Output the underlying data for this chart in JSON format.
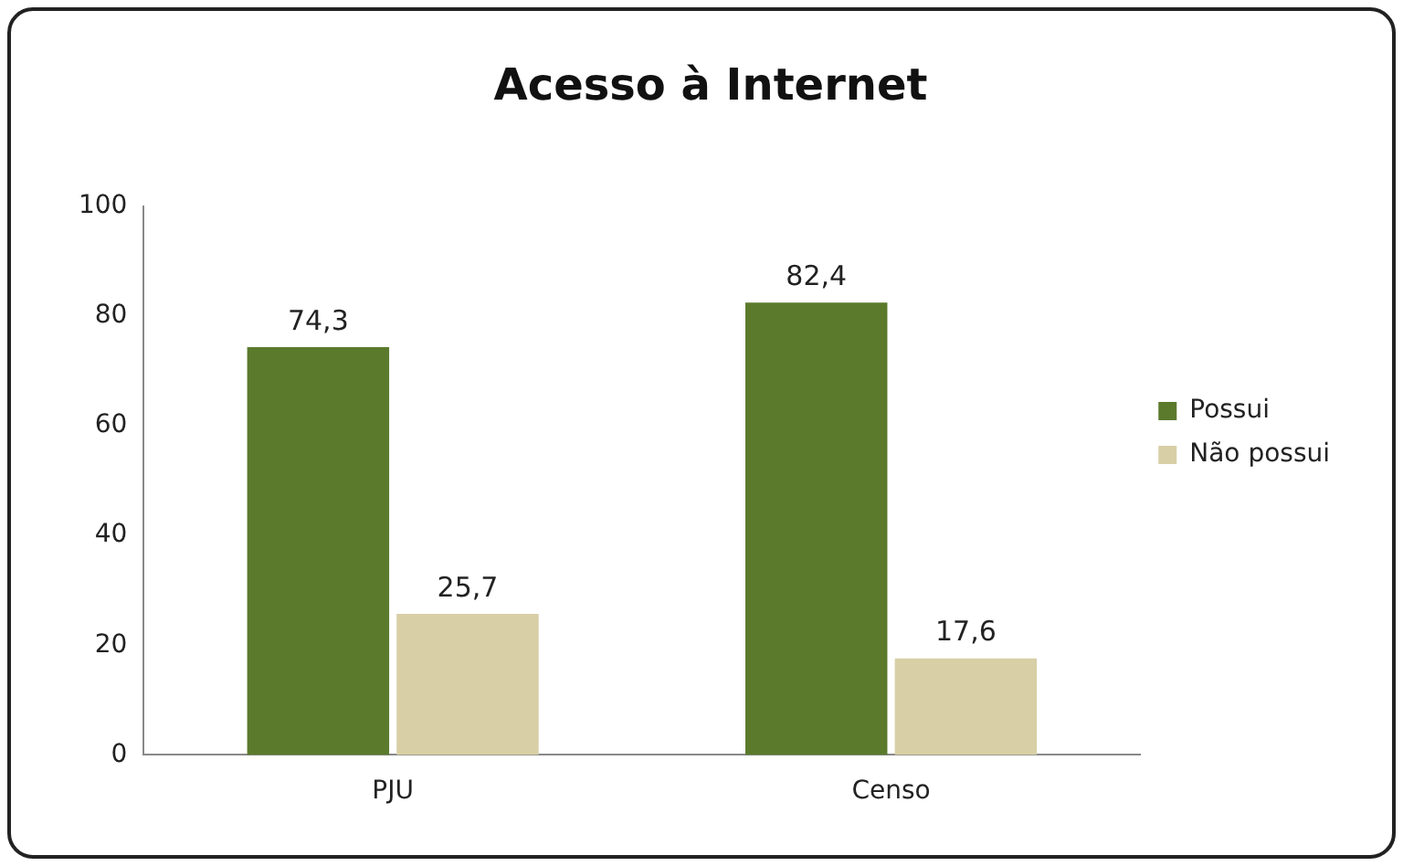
{
  "chart_data": {
    "type": "bar",
    "title": "Acesso à Internet",
    "categories": [
      "PJU",
      "Censo"
    ],
    "series": [
      {
        "name": "Possui",
        "color": "#5b7a2c",
        "values": [
          74.3,
          82.4
        ],
        "value_labels": [
          "74,3",
          "82,4"
        ]
      },
      {
        "name": "Não possui",
        "color": "#d8cfa6",
        "values": [
          25.7,
          17.6
        ],
        "value_labels": [
          "25,7",
          "17,6"
        ]
      }
    ],
    "ylim": [
      0,
      100
    ],
    "yticks": [
      0,
      20,
      40,
      60,
      80,
      100
    ],
    "grid": false,
    "legend": "right"
  }
}
